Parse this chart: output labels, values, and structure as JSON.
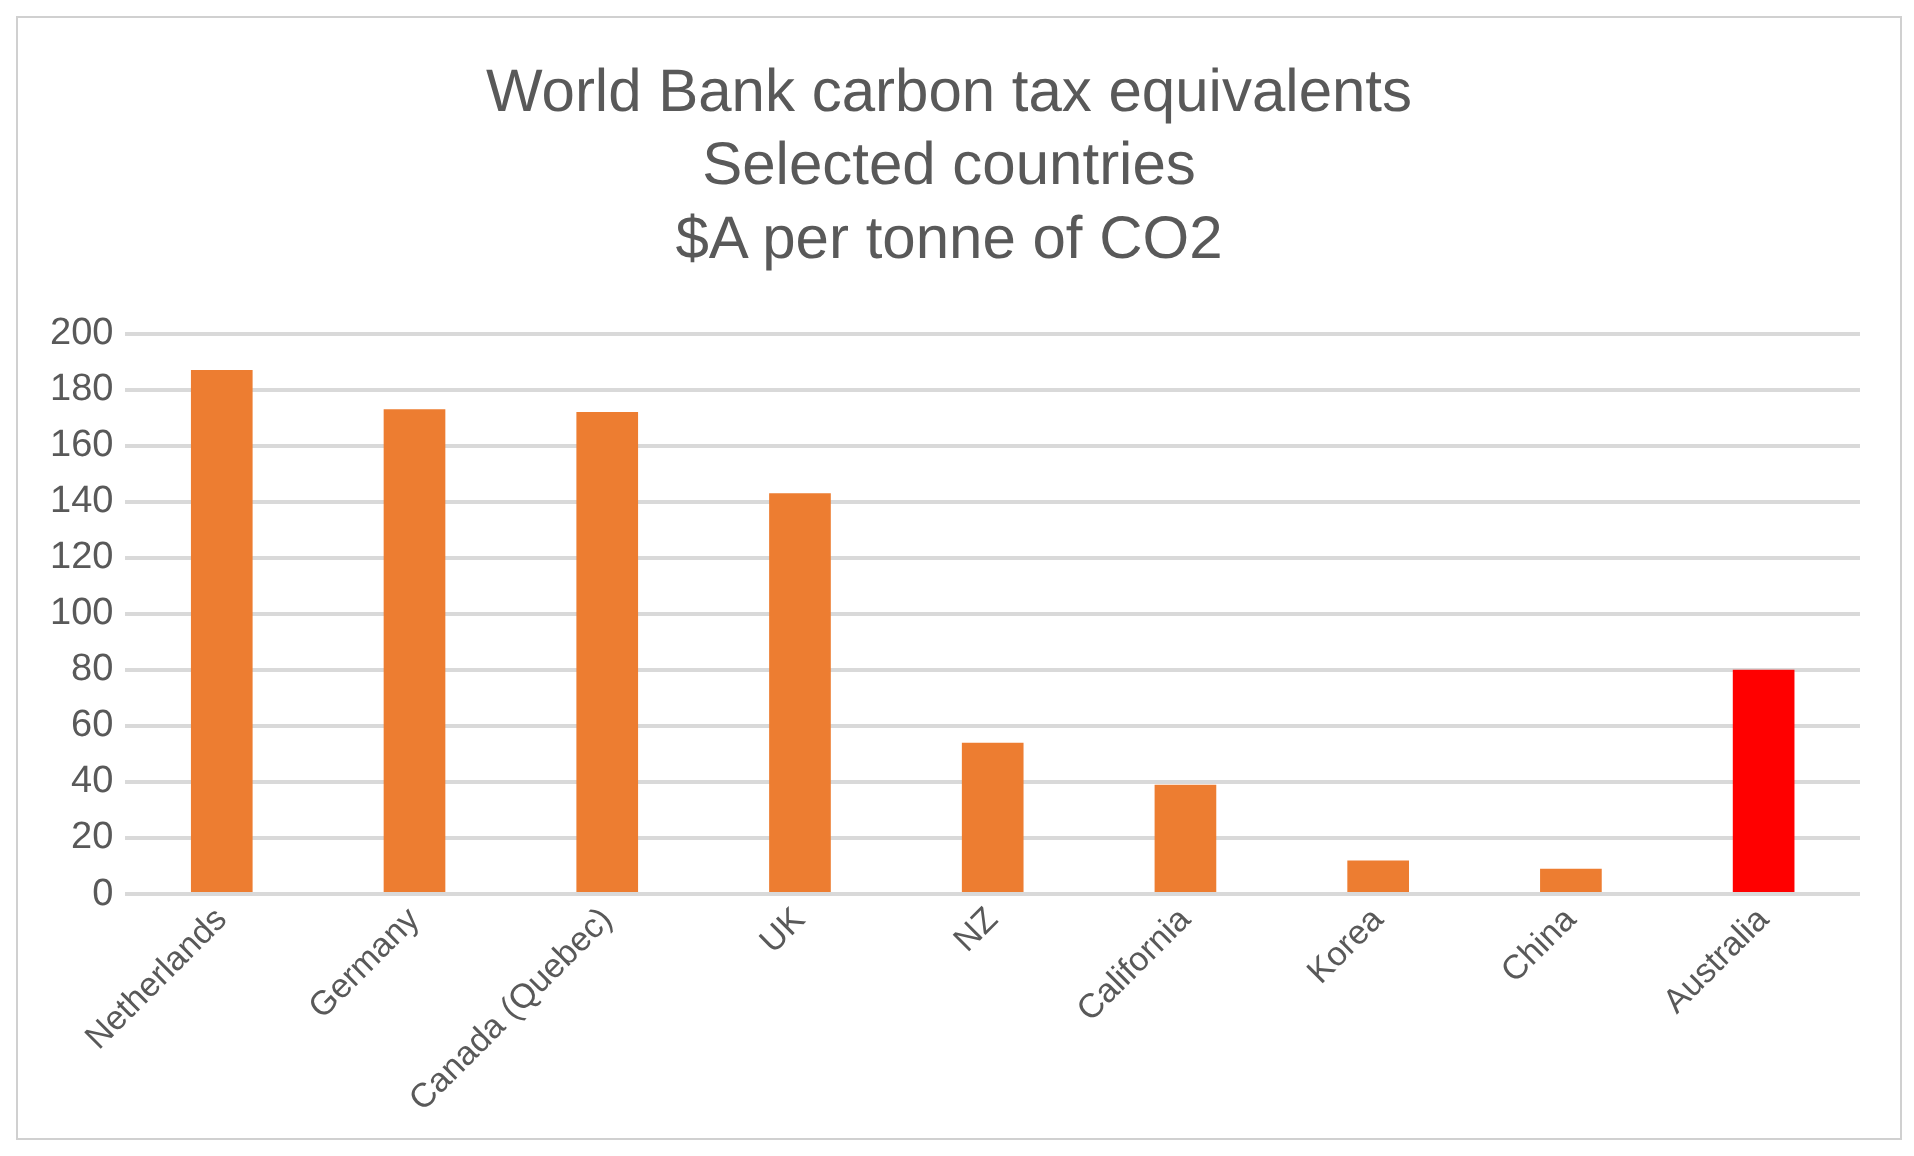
{
  "chart_data": {
    "type": "bar",
    "title": "World Bank carbon tax equivalents\nSelected countries\n$A per tonne of CO2",
    "categories": [
      "Netherlands",
      "Germany",
      "Canada (Quebec)",
      "UK",
      "NZ",
      "California",
      "Korea",
      "China",
      "Australia"
    ],
    "values": [
      187,
      173,
      172,
      143,
      54,
      39,
      12,
      9,
      80
    ],
    "colors": [
      "#ed7d31",
      "#ed7d31",
      "#ed7d31",
      "#ed7d31",
      "#ed7d31",
      "#ed7d31",
      "#ed7d31",
      "#ed7d31",
      "#ff0000"
    ],
    "ylim": [
      0,
      200
    ],
    "yticks": [
      0,
      20,
      40,
      60,
      80,
      100,
      120,
      140,
      160,
      180,
      200
    ],
    "grid": "y",
    "legend": false
  }
}
